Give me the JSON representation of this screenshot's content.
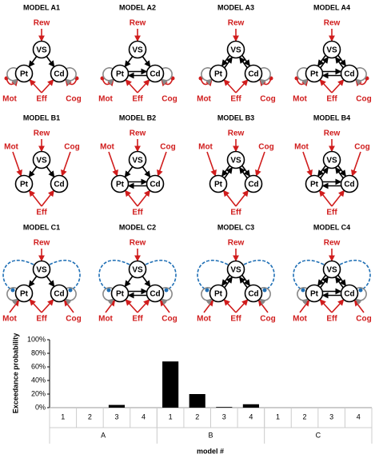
{
  "models": [
    {
      "title": "MODEL A1",
      "nodes": [
        "Rew",
        "VS",
        "Pt",
        "Cd",
        "Mot",
        "Eff",
        "Cog"
      ]
    },
    {
      "title": "MODEL A2",
      "nodes": [
        "Rew",
        "VS",
        "Pt",
        "Cd",
        "Mot",
        "Eff",
        "Cog"
      ]
    },
    {
      "title": "MODEL A3",
      "nodes": [
        "Rew",
        "VS",
        "Pt",
        "Cd",
        "Mot",
        "Eff",
        "Cog"
      ]
    },
    {
      "title": "MODEL A4",
      "nodes": [
        "Rew",
        "VS",
        "Pt",
        "Cd",
        "Mot",
        "Eff",
        "Cog"
      ]
    },
    {
      "title": "MODEL B1",
      "nodes": [
        "Rew",
        "VS",
        "Pt",
        "Cd",
        "Mot",
        "Eff",
        "Cog"
      ]
    },
    {
      "title": "MODEL B2",
      "nodes": [
        "Rew",
        "VS",
        "Pt",
        "Cd",
        "Mot",
        "Eff",
        "Cog"
      ]
    },
    {
      "title": "MODEL B3",
      "nodes": [
        "Rew",
        "VS",
        "Pt",
        "Cd",
        "Mot",
        "Eff",
        "Cog"
      ]
    },
    {
      "title": "MODEL B4",
      "nodes": [
        "Rew",
        "VS",
        "Pt",
        "Cd",
        "Mot",
        "Eff",
        "Cog"
      ]
    },
    {
      "title": "MODEL C1",
      "nodes": [
        "Rew",
        "VS",
        "Pt",
        "Cd",
        "Mot",
        "Eff",
        "Cog"
      ]
    },
    {
      "title": "MODEL C2",
      "nodes": [
        "Rew",
        "VS",
        "Pt",
        "Cd",
        "Mot",
        "Eff",
        "Cog"
      ]
    },
    {
      "title": "MODEL C3",
      "nodes": [
        "Rew",
        "VS",
        "Pt",
        "Cd",
        "Mot",
        "Eff",
        "Cog"
      ]
    },
    {
      "title": "MODEL C4",
      "nodes": [
        "Rew",
        "VS",
        "Pt",
        "Cd",
        "Mot",
        "Eff",
        "Cog"
      ]
    }
  ],
  "chart_data": {
    "type": "bar",
    "ylabel": "Exceedance probability",
    "xlabel": "model #",
    "categories": [
      "1",
      "2",
      "3",
      "4",
      "1",
      "2",
      "3",
      "4",
      "1",
      "2",
      "3",
      "4"
    ],
    "groups": [
      "A",
      "B",
      "C"
    ],
    "values": [
      0,
      0,
      4,
      0,
      68,
      20,
      1,
      5,
      0,
      0,
      0,
      0
    ],
    "color": "#000000",
    "ylim": [
      0,
      100
    ],
    "yticks": [
      {
        "value": 0,
        "label": "0%"
      },
      {
        "value": 20,
        "label": "20%"
      },
      {
        "value": 40,
        "label": "40%"
      },
      {
        "value": 60,
        "label": "60%"
      },
      {
        "value": 80,
        "label": "80%"
      },
      {
        "value": 100,
        "label": "100%"
      }
    ]
  }
}
